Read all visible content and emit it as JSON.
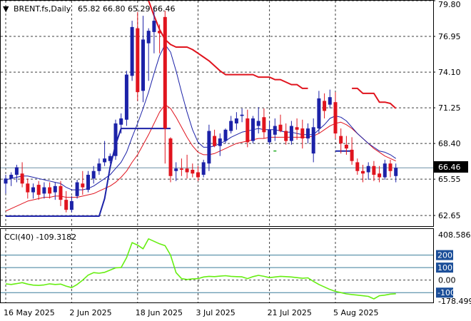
{
  "header": {
    "arrow": "▼",
    "symbol": "BRENT.fs,Daily",
    "ohlc": "65.82 66.80 65.29 66.46"
  },
  "cci_header": "CCI(40) -109.3182",
  "current_price_label": "66.46",
  "colors": {
    "up": "#1c22a8",
    "down": "#e0141e",
    "line_fast": "#1c22a8",
    "line_slow": "#e0141e",
    "cci": "#66ee11",
    "badge": "#1c4f99",
    "grid": "#000000",
    "level": "#3a7d9a"
  },
  "chart_data": [
    {
      "type": "candlestick",
      "title": "BRENT.fs,Daily",
      "ylim": [
        61.8,
        79.8
      ],
      "y_ticks": [
        "79.80",
        "76.95",
        "74.10",
        "71.25",
        "68.40",
        "65.55",
        "62.65"
      ],
      "x_ticks": [
        "16 May 2025",
        "2 Jun 2025",
        "18 Jun 2025",
        "3 Jul 2025",
        "21 Jul 2025",
        "5 Aug 2025"
      ],
      "x_tick_index": [
        0,
        12,
        24,
        35,
        48,
        60
      ],
      "candles": [
        [
          65.2,
          65.9,
          64.4,
          65.6
        ],
        [
          65.6,
          66.1,
          65.0,
          65.9
        ],
        [
          65.9,
          66.7,
          65.3,
          66.5
        ],
        [
          66.0,
          66.9,
          64.9,
          65.2
        ],
        [
          65.2,
          65.6,
          64.0,
          64.5
        ],
        [
          64.5,
          65.2,
          64.0,
          64.9
        ],
        [
          65.1,
          65.4,
          63.9,
          64.3
        ],
        [
          64.4,
          65.3,
          64.0,
          64.9
        ],
        [
          64.9,
          65.3,
          64.0,
          64.4
        ],
        [
          64.5,
          65.3,
          63.9,
          65.0
        ],
        [
          65.0,
          65.4,
          63.4,
          63.9
        ],
        [
          63.9,
          64.6,
          62.9,
          63.1
        ],
        [
          63.1,
          64.2,
          62.9,
          63.8
        ],
        [
          64.2,
          65.5,
          64.0,
          65.3
        ],
        [
          65.2,
          66.2,
          64.3,
          64.9
        ],
        [
          64.7,
          66.2,
          64.5,
          65.9
        ],
        [
          65.6,
          66.6,
          65.2,
          66.2
        ],
        [
          66.2,
          67.2,
          65.9,
          66.8
        ],
        [
          66.9,
          68.6,
          66.6,
          67.2
        ],
        [
          67.0,
          67.6,
          66.8,
          67.4
        ],
        [
          67.4,
          70.3,
          67.1,
          70.0
        ],
        [
          69.9,
          70.8,
          69.2,
          70.4
        ],
        [
          70.3,
          74.2,
          69.8,
          73.9
        ],
        [
          73.8,
          78.2,
          73.4,
          77.7
        ],
        [
          77.6,
          78.9,
          71.8,
          72.5
        ],
        [
          72.6,
          78.6,
          71.7,
          76.7
        ],
        [
          76.4,
          77.6,
          73.4,
          77.4
        ],
        [
          77.3,
          79.3,
          75.6,
          78.2
        ],
        [
          77.4,
          77.9,
          75.6,
          77.2
        ],
        [
          78.5,
          79.0,
          66.8,
          69.6
        ],
        [
          68.8,
          68.9,
          65.3,
          65.8
        ],
        [
          66.2,
          66.9,
          65.4,
          66.4
        ],
        [
          66.4,
          67.2,
          65.8,
          66.3
        ],
        [
          66.4,
          67.5,
          65.6,
          66.1
        ],
        [
          66.3,
          66.8,
          65.7,
          66.0
        ],
        [
          66.1,
          66.6,
          65.4,
          65.7
        ],
        [
          65.9,
          67.1,
          65.7,
          66.9
        ],
        [
          66.8,
          69.9,
          66.2,
          69.4
        ],
        [
          69.0,
          69.5,
          68.1,
          68.2
        ],
        [
          68.2,
          69.2,
          67.4,
          68.8
        ],
        [
          68.6,
          69.6,
          68.4,
          69.5
        ],
        [
          69.4,
          70.6,
          69.2,
          70.2
        ],
        [
          70.0,
          70.9,
          69.5,
          70.4
        ],
        [
          70.6,
          71.2,
          70.1,
          70.7
        ],
        [
          70.4,
          71.1,
          68.1,
          68.5
        ],
        [
          68.6,
          70.6,
          68.4,
          70.4
        ],
        [
          69.8,
          71.3,
          69.2,
          70.2
        ],
        [
          70.5,
          71.2,
          68.8,
          69.3
        ],
        [
          68.5,
          70.2,
          68.3,
          69.5
        ],
        [
          69.1,
          70.4,
          68.6,
          69.8
        ],
        [
          69.9,
          70.7,
          69.3,
          69.4
        ],
        [
          69.4,
          70.0,
          68.3,
          68.6
        ],
        [
          68.6,
          70.2,
          68.3,
          69.8
        ],
        [
          69.7,
          70.4,
          68.7,
          69.5
        ],
        [
          69.6,
          70.3,
          68.0,
          68.8
        ],
        [
          68.8,
          70.0,
          68.4,
          69.6
        ],
        [
          67.6,
          70.4,
          66.9,
          69.7
        ],
        [
          69.6,
          72.6,
          69.2,
          72.0
        ],
        [
          71.8,
          72.4,
          70.4,
          71.0
        ],
        [
          71.5,
          72.7,
          71.2,
          72.1
        ],
        [
          71.7,
          72.5,
          68.8,
          69.2
        ],
        [
          69.0,
          69.6,
          67.6,
          68.4
        ],
        [
          68.3,
          69.0,
          67.5,
          68.0
        ],
        [
          67.9,
          68.9,
          66.7,
          67.0
        ],
        [
          66.9,
          67.2,
          65.9,
          66.2
        ],
        [
          66.2,
          66.7,
          65.3,
          66.0
        ],
        [
          66.1,
          66.9,
          65.5,
          66.6
        ],
        [
          66.6,
          67.0,
          65.4,
          65.9
        ],
        [
          66.0,
          66.6,
          65.3,
          65.7
        ],
        [
          65.7,
          67.1,
          65.5,
          66.8
        ],
        [
          66.8,
          67.1,
          65.7,
          66.2
        ],
        [
          65.8,
          66.8,
          65.3,
          66.46
        ]
      ],
      "fast_line": [
        62.6,
        62.6,
        62.6,
        62.6,
        62.6,
        62.6,
        62.6,
        62.6,
        62.6,
        62.6,
        62.6,
        62.6,
        62.6,
        62.6,
        62.6,
        62.6,
        62.6,
        62.6,
        64.0,
        66.5,
        68.3,
        69.6,
        69.6,
        69.6,
        69.6,
        69.6,
        69.6,
        69.6,
        69.6,
        69.6,
        69.6,
        null,
        null,
        null,
        null,
        null,
        null,
        null,
        null,
        null,
        null,
        null,
        null,
        null,
        null,
        null,
        null,
        null,
        null,
        null,
        null,
        null,
        null,
        null,
        null,
        null,
        null,
        null,
        null,
        null,
        67.8,
        67.8,
        67.8,
        67.8,
        null,
        null,
        null,
        null,
        null,
        null,
        null,
        null
      ],
      "slow_line": [
        null,
        null,
        null,
        null,
        null,
        null,
        null,
        null,
        null,
        null,
        null,
        null,
        null,
        null,
        null,
        null,
        null,
        null,
        null,
        null,
        null,
        null,
        null,
        null,
        null,
        null,
        79.8,
        78.6,
        77.5,
        76.7,
        76.3,
        76.1,
        76.1,
        76.1,
        75.9,
        75.6,
        75.3,
        75.0,
        74.6,
        74.2,
        73.9,
        73.9,
        73.9,
        73.9,
        73.9,
        73.9,
        73.7,
        73.7,
        73.7,
        73.5,
        73.5,
        73.3,
        73.1,
        73.1,
        72.8,
        72.8,
        null,
        null,
        null,
        null,
        null,
        null,
        null,
        72.8,
        72.8,
        72.4,
        72.4,
        72.4,
        71.7,
        71.7,
        71.6,
        71.2
      ],
      "ma_fast": [
        65.5,
        65.6,
        65.7,
        65.8,
        65.8,
        65.7,
        65.6,
        65.5,
        65.4,
        65.3,
        65.2,
        64.9,
        64.7,
        64.7,
        64.7,
        64.8,
        65.0,
        65.3,
        65.6,
        65.9,
        66.4,
        66.9,
        67.7,
        68.9,
        70.0,
        71.2,
        72.5,
        74.0,
        75.4,
        76.3,
        75.7,
        74.2,
        72.5,
        70.9,
        69.5,
        68.5,
        68.1,
        68.1,
        68.2,
        68.4,
        68.6,
        68.9,
        69.1,
        69.3,
        69.4,
        69.5,
        69.6,
        69.5,
        69.5,
        69.5,
        69.4,
        69.3,
        69.3,
        69.2,
        69.1,
        69.1,
        69.1,
        69.5,
        69.9,
        70.4,
        70.6,
        70.5,
        70.2,
        69.7,
        69.2,
        68.8,
        68.4,
        68.1,
        67.8,
        67.7,
        67.5,
        67.2
      ],
      "ma_slow": [
        63.0,
        63.2,
        63.4,
        63.6,
        63.8,
        63.9,
        64.0,
        64.1,
        64.1,
        64.2,
        64.2,
        64.1,
        64.1,
        64.1,
        64.2,
        64.3,
        64.4,
        64.6,
        64.8,
        65.0,
        65.3,
        65.7,
        66.2,
        66.9,
        67.5,
        68.3,
        69.1,
        70.0,
        70.9,
        71.5,
        71.2,
        70.5,
        69.7,
        68.9,
        68.2,
        67.7,
        67.5,
        67.5,
        67.6,
        67.8,
        68.0,
        68.2,
        68.4,
        68.5,
        68.6,
        68.7,
        68.8,
        68.8,
        68.9,
        68.9,
        68.9,
        68.9,
        68.9,
        68.9,
        68.9,
        68.9,
        69.0,
        69.2,
        69.5,
        69.8,
        70.0,
        70.1,
        69.9,
        69.6,
        69.2,
        68.8,
        68.4,
        68.0,
        67.7,
        67.4,
        67.2,
        67.0
      ],
      "markers": [
        {
          "i": 25,
          "v": 75.4
        },
        {
          "i": 49,
          "v": 67.8
        }
      ]
    },
    {
      "type": "line",
      "title": "CCI(40) -109.3182",
      "ylim": [
        -178.499,
        408.586
      ],
      "y_ticks": [
        "408.586",
        "200",
        "100",
        "0.00",
        "-100",
        "-178.499"
      ],
      "levels": [
        200,
        100,
        -100
      ],
      "boxed_labels": [
        "200",
        "100",
        "-100"
      ],
      "values": [
        -30,
        -35,
        -28,
        -20,
        -32,
        -40,
        -42,
        -38,
        -30,
        -35,
        -32,
        -48,
        -60,
        -35,
        0,
        40,
        60,
        55,
        62,
        80,
        98,
        100,
        180,
        300,
        280,
        250,
        330,
        310,
        290,
        275,
        200,
        60,
        12,
        5,
        10,
        12,
        25,
        30,
        28,
        32,
        35,
        30,
        28,
        26,
        12,
        28,
        38,
        30,
        20,
        25,
        30,
        28,
        25,
        20,
        15,
        18,
        -10,
        -35,
        -55,
        -75,
        -90,
        -100,
        -110,
        -115,
        -120,
        -125,
        -130,
        -150,
        -125,
        -120,
        -112,
        -109
      ]
    }
  ]
}
